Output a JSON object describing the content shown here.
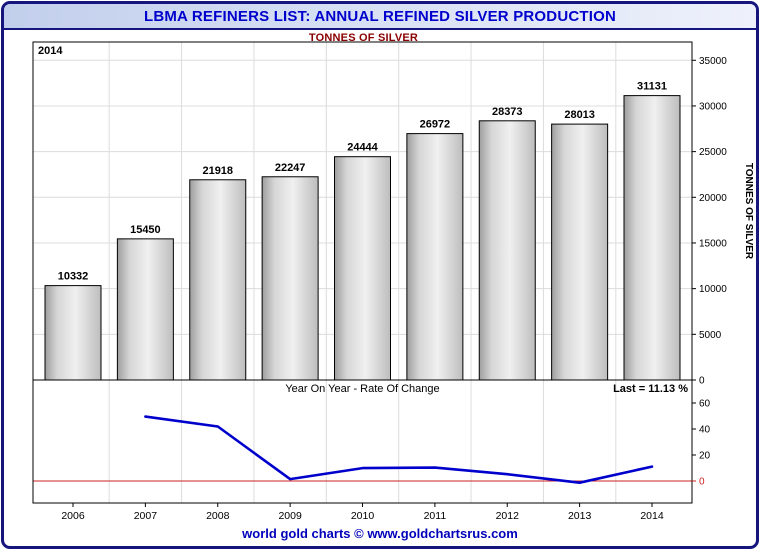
{
  "window": {
    "title": "LBMA REFINERS LIST: ANNUAL REFINED SILVER PRODUCTION",
    "subtitle": "TONNES OF SILVER",
    "footer": "world gold charts © www.goldchartsrus.com"
  },
  "colors": {
    "title_text": "#0000cc",
    "subtitle_text": "#8b0000",
    "bar_fill": "#d9d9d9",
    "bar_edge": "#000000",
    "line": "#0000cc",
    "zero_line": "#cc2222",
    "grid": "#dcdcdc",
    "plot_border": "#000000",
    "footer_text": "#0000bb"
  },
  "chart_data": [
    {
      "type": "bar",
      "title": "TONNES OF SILVER",
      "categories": [
        "2006",
        "2007",
        "2008",
        "2009",
        "2010",
        "2011",
        "2012",
        "2013",
        "2014"
      ],
      "values": [
        10332,
        15450,
        21918,
        22247,
        24444,
        26972,
        28373,
        28013,
        31131
      ],
      "annotation": "2014",
      "xlabel": "",
      "ylabel": "TONNES OF SILVER",
      "ylim": [
        0,
        37000
      ],
      "yticks": [
        0,
        5000,
        10000,
        15000,
        20000,
        25000,
        30000,
        35000
      ],
      "grid": true,
      "legend_position": "none"
    },
    {
      "type": "line",
      "title": "Year On Year - Rate Of Change",
      "x": [
        "2007",
        "2008",
        "2009",
        "2010",
        "2011",
        "2012",
        "2013",
        "2014"
      ],
      "values": [
        49.5,
        41.9,
        1.5,
        9.9,
        10.3,
        5.2,
        -1.3,
        11.1
      ],
      "last_text": "Last = 11.13 %",
      "ylim": [
        -18,
        77
      ],
      "yticks": [
        0,
        20,
        40,
        60
      ],
      "zero_line": true,
      "grid": false,
      "legend_position": "none"
    }
  ]
}
